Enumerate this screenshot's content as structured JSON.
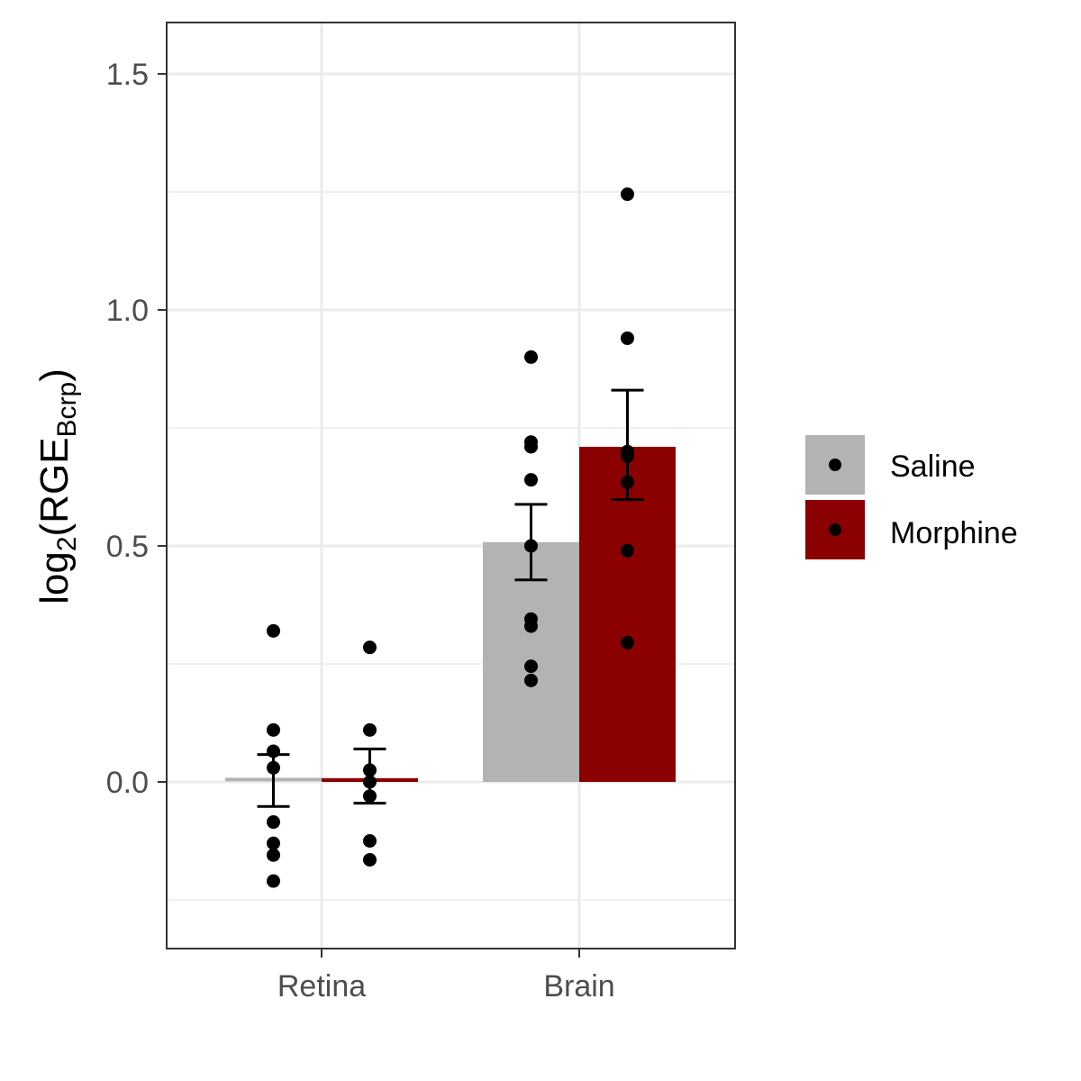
{
  "chart_data": {
    "type": "bar",
    "categories": [
      "Retina",
      "Brain"
    ],
    "series": [
      {
        "name": "Saline",
        "color": "#b3b3b3",
        "values": [
          0.005,
          0.508
        ],
        "error_low": [
          -0.052,
          0.428
        ],
        "error_high": [
          0.058,
          0.588
        ],
        "points": [
          [
            0.32,
            0.11,
            0.065,
            0.03,
            -0.085,
            -0.13,
            -0.155,
            -0.21
          ],
          [
            0.9,
            0.72,
            0.71,
            0.64,
            0.5,
            0.345,
            0.33,
            0.245,
            0.215
          ]
        ]
      },
      {
        "name": "Morphine",
        "color": "#8b0000",
        "values": [
          0.008,
          0.71
        ],
        "error_low": [
          -0.045,
          0.598
        ],
        "error_high": [
          0.07,
          0.83
        ],
        "points": [
          [
            0.285,
            0.11,
            0.025,
            0.0,
            -0.03,
            -0.125,
            -0.165
          ],
          [
            1.245,
            0.94,
            0.7,
            0.69,
            0.635,
            0.49,
            0.295
          ]
        ]
      }
    ],
    "ylabel": {
      "prefix": "log",
      "prefix_sub": "2",
      "open": "(",
      "main": "RGE",
      "main_sub": "Bcrp",
      "close": ")"
    },
    "yticks": [
      "0.0",
      "0.5",
      "1.0",
      "1.5"
    ],
    "ytick_values": [
      0.0,
      0.5,
      1.0,
      1.5
    ],
    "ylim": [
      -0.35,
      1.61
    ],
    "grid": true,
    "legend_position": "right"
  }
}
